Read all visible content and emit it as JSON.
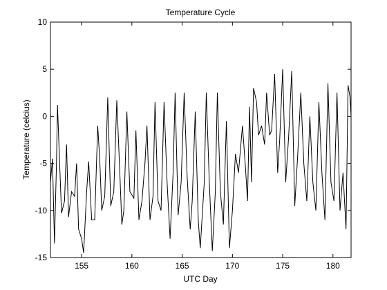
{
  "chart_data": {
    "type": "line",
    "title": "Temperature Cycle",
    "x_label": "UTC Day",
    "y_label": "Temperature (celcius)",
    "xlim": [
      151.9,
      181.8
    ],
    "ylim": [
      -15,
      10
    ],
    "xticks": [
      155,
      160,
      165,
      170,
      175,
      180
    ],
    "yticks": [
      -15,
      -10,
      -5,
      0,
      5,
      10
    ],
    "series": [
      {
        "name": "Temperature",
        "color": "#000000",
        "x": [
          151.9,
          152.1,
          152.3,
          152.5,
          152.6,
          153,
          153.3,
          153.5,
          153.7,
          154,
          154.3,
          154.5,
          154.7,
          155,
          155.2,
          155.5,
          155.7,
          156,
          156.3,
          156.6,
          156.8,
          157,
          157.3,
          157.6,
          157.9,
          158.2,
          158.5,
          158.8,
          159,
          159.2,
          159.5,
          159.8,
          160.2,
          160.4,
          160.7,
          161,
          161.3,
          161.5,
          161.8,
          162.1,
          162.3,
          162.6,
          162.9,
          163.2,
          163.5,
          163.8,
          164.1,
          164.3,
          164.6,
          164.9,
          165.2,
          165.5,
          165.8,
          166,
          166.3,
          166.6,
          166.8,
          167.2,
          167.4,
          167.7,
          168,
          168.3,
          168.5,
          168.8,
          169.1,
          169.4,
          169.7,
          170,
          170.3,
          170.6,
          171,
          171.3,
          171.5,
          171.7,
          171.9,
          172.1,
          172.4,
          172.6,
          172.9,
          173.2,
          173.4,
          173.7,
          173.9,
          174.2,
          174.5,
          174.7,
          175,
          175.3,
          175.6,
          175.9,
          176.2,
          176.5,
          176.8,
          177.1,
          177.4,
          177.7,
          178,
          178.3,
          178.6,
          178.9,
          179.2,
          179.5,
          179.8,
          180.1,
          180.4,
          180.7,
          181,
          181.3,
          181.5,
          181.7,
          181.8
        ],
        "values": [
          -7,
          -4.5,
          -13.5,
          -5,
          1.2,
          -10.3,
          -9,
          -3,
          -10.7,
          -8,
          -8.5,
          -5,
          -12,
          -13,
          -14.5,
          -8,
          -4.8,
          -11,
          -11,
          -1,
          -4.5,
          -10,
          -8.5,
          2,
          -9.5,
          -8,
          1.7,
          -6,
          -11.5,
          -10,
          0.5,
          -8,
          -8.7,
          -1.5,
          -11,
          -9,
          -5,
          -1,
          -11,
          -8.5,
          1.5,
          -9,
          -10,
          1.5,
          -7,
          -13,
          -6,
          2.5,
          -10.5,
          -7,
          2.5,
          -6.5,
          -12,
          -9,
          0.5,
          -11,
          -14,
          -7,
          2.5,
          -7,
          -14.3,
          -8,
          2.5,
          -8,
          -11.5,
          -0.5,
          -14,
          -10,
          -4,
          -6,
          -1,
          -5.5,
          -9,
          1,
          -7,
          3,
          1.5,
          -2,
          -1,
          -3,
          2.5,
          -2,
          -1.5,
          4.5,
          -6,
          -2.5,
          5,
          -7,
          -2,
          4.8,
          -9.5,
          -4,
          2.5,
          -5,
          -9,
          0,
          -7,
          -10,
          1.5,
          -6,
          -11,
          3.5,
          -7,
          -9,
          2.5,
          -10,
          -6,
          -12,
          3.3,
          2,
          0
        ]
      }
    ]
  }
}
